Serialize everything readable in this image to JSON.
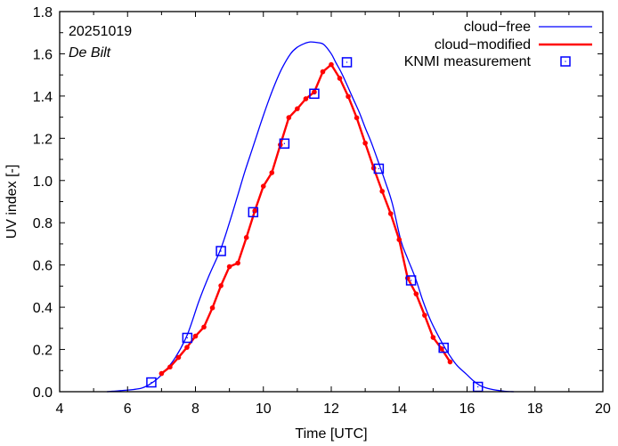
{
  "chart_data": {
    "type": "line",
    "title": "",
    "xlabel": "Time  [UTC]",
    "ylabel": "UV index  [-]",
    "xlim": [
      4,
      20
    ],
    "ylim": [
      0,
      1.8
    ],
    "xticks": [
      4,
      6,
      8,
      10,
      12,
      14,
      16,
      18,
      20
    ],
    "xtick_labels": [
      "4",
      "6",
      "8",
      "10",
      "12",
      "14",
      "16",
      "18",
      "20"
    ],
    "yticks": [
      0,
      0.2,
      0.4,
      0.6,
      0.8,
      1.0,
      1.2,
      1.4,
      1.6,
      1.8
    ],
    "ytick_labels": [
      "0.0",
      "0.2",
      "0.4",
      "0.6",
      "0.8",
      "1.0",
      "1.2",
      "1.4",
      "1.6",
      "1.8"
    ],
    "grid": false,
    "legend_position": "top-right",
    "annotations": [
      "20251019",
      "De Bilt"
    ],
    "series": [
      {
        "name": "cloud−free",
        "style": "line",
        "color": "#0000ff",
        "x": [
          5.39,
          5.8,
          6.39,
          6.7,
          7.0,
          7.4,
          7.76,
          8.1,
          8.4,
          8.74,
          9.0,
          9.24,
          9.45,
          9.68,
          9.9,
          10.12,
          10.35,
          10.55,
          10.8,
          10.99,
          11.2,
          11.38,
          11.6,
          11.78,
          12.0,
          12.13,
          12.3,
          12.48,
          12.65,
          12.83,
          13.0,
          13.18,
          13.4,
          13.6,
          13.8,
          14.05,
          14.25,
          14.49,
          14.7,
          14.93,
          15.2,
          15.45,
          15.7,
          15.98,
          16.2,
          16.41,
          16.7,
          17.11,
          17.38
        ],
        "y": [
          0.0,
          0.005,
          0.016,
          0.04,
          0.08,
          0.16,
          0.27,
          0.428,
          0.55,
          0.674,
          0.8,
          0.927,
          1.04,
          1.152,
          1.26,
          1.363,
          1.46,
          1.532,
          1.6,
          1.63,
          1.648,
          1.656,
          1.653,
          1.644,
          1.6,
          1.56,
          1.51,
          1.447,
          1.385,
          1.321,
          1.25,
          1.18,
          1.082,
          0.99,
          0.89,
          0.716,
          0.63,
          0.533,
          0.43,
          0.336,
          0.25,
          0.181,
          0.125,
          0.083,
          0.05,
          0.027,
          0.012,
          0.002,
          0.0
        ]
      },
      {
        "name": "cloud−modified",
        "style": "line+points",
        "color": "#ff0000",
        "x": [
          7.0,
          7.25,
          7.5,
          7.75,
          8.0,
          8.25,
          8.5,
          8.75,
          9.0,
          9.25,
          9.5,
          9.75,
          10.0,
          10.25,
          10.5,
          10.75,
          11.0,
          11.25,
          11.5,
          11.75,
          12.0,
          12.25,
          12.5,
          12.75,
          13.0,
          13.25,
          13.5,
          13.75,
          14.0,
          14.25,
          14.5,
          14.75,
          15.0,
          15.25,
          15.5
        ],
        "y": [
          0.086,
          0.117,
          0.162,
          0.21,
          0.263,
          0.306,
          0.397,
          0.502,
          0.592,
          0.609,
          0.73,
          0.857,
          0.973,
          1.037,
          1.169,
          1.298,
          1.34,
          1.387,
          1.419,
          1.515,
          1.549,
          1.484,
          1.398,
          1.297,
          1.177,
          1.059,
          0.949,
          0.843,
          0.72,
          0.538,
          0.463,
          0.362,
          0.257,
          0.203,
          0.141
        ]
      },
      {
        "name": "KNMI measurement",
        "style": "points",
        "marker": "square-with-dot",
        "color": "#0000ff",
        "x": [
          6.7,
          7.76,
          8.75,
          9.7,
          10.62,
          11.5,
          12.46,
          13.4,
          14.35,
          15.31,
          16.32
        ],
        "y": [
          0.044,
          0.255,
          0.666,
          0.85,
          1.175,
          1.411,
          1.56,
          1.056,
          0.527,
          0.208,
          0.023
        ]
      }
    ]
  }
}
